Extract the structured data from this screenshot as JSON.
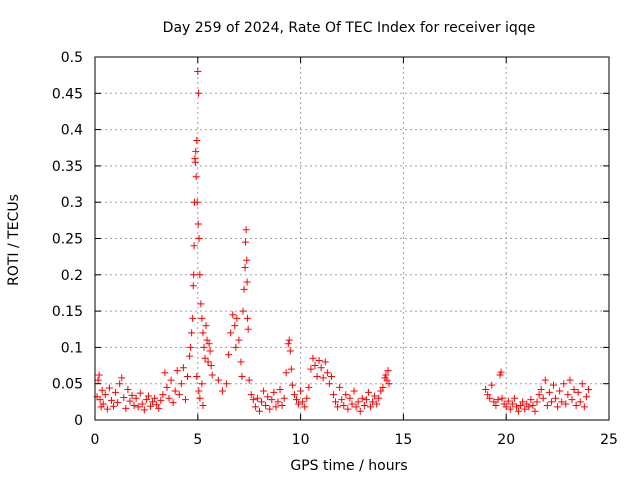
{
  "chart_data": {
    "type": "scatter",
    "title": "Day 259 of 2024, Rate Of TEC Index for receiver iqqe",
    "xlabel": "GPS time / hours",
    "ylabel": "ROTI / TECUs",
    "xlim": [
      0,
      25
    ],
    "ylim": [
      0,
      0.5
    ],
    "xticks": [
      0,
      5,
      10,
      15,
      20,
      25
    ],
    "xtick_labels": [
      "0",
      "5",
      "10",
      "15",
      "20",
      "25"
    ],
    "yticks": [
      0,
      0.05,
      0.1,
      0.15,
      0.2,
      0.25,
      0.3,
      0.35,
      0.4,
      0.45,
      0.5
    ],
    "ytick_labels": [
      "0",
      "0.05",
      "0.1",
      "0.15",
      "0.2",
      "0.25",
      "0.3",
      "0.35",
      "0.4",
      "0.45",
      "0.5"
    ],
    "grid": true,
    "marker": "+",
    "color": "#ff0000",
    "series": [
      {
        "name": "ROTI",
        "points": [
          [
            0.1,
            0.032
          ],
          [
            0.15,
            0.055
          ],
          [
            0.2,
            0.062
          ],
          [
            0.25,
            0.028
          ],
          [
            0.3,
            0.018
          ],
          [
            0.35,
            0.041
          ],
          [
            0.4,
            0.022
          ],
          [
            0.5,
            0.035
          ],
          [
            0.6,
            0.015
          ],
          [
            0.7,
            0.044
          ],
          [
            0.8,
            0.027
          ],
          [
            0.9,
            0.019
          ],
          [
            1.0,
            0.038
          ],
          [
            1.1,
            0.024
          ],
          [
            1.2,
            0.05
          ],
          [
            1.3,
            0.058
          ],
          [
            1.4,
            0.031
          ],
          [
            1.5,
            0.016
          ],
          [
            1.6,
            0.042
          ],
          [
            1.7,
            0.026
          ],
          [
            1.8,
            0.034
          ],
          [
            1.9,
            0.02
          ],
          [
            2.0,
            0.03
          ],
          [
            2.1,
            0.018
          ],
          [
            2.2,
            0.037
          ],
          [
            2.3,
            0.022
          ],
          [
            2.4,
            0.014
          ],
          [
            2.5,
            0.028
          ],
          [
            2.6,
            0.033
          ],
          [
            2.7,
            0.019
          ],
          [
            2.8,
            0.025
          ],
          [
            2.9,
            0.03
          ],
          [
            3.0,
            0.021
          ],
          [
            3.1,
            0.016
          ],
          [
            3.2,
            0.027
          ],
          [
            3.3,
            0.035
          ],
          [
            3.4,
            0.065
          ],
          [
            3.5,
            0.045
          ],
          [
            3.6,
            0.03
          ],
          [
            3.7,
            0.055
          ],
          [
            3.8,
            0.024
          ],
          [
            3.9,
            0.04
          ],
          [
            4.0,
            0.068
          ],
          [
            4.1,
            0.035
          ],
          [
            4.2,
            0.05
          ],
          [
            4.3,
            0.072
          ],
          [
            4.4,
            0.028
          ],
          [
            4.5,
            0.06
          ],
          [
            4.6,
            0.088
          ],
          [
            4.65,
            0.1
          ],
          [
            4.7,
            0.12
          ],
          [
            4.75,
            0.14
          ],
          [
            4.78,
            0.185
          ],
          [
            4.8,
            0.2
          ],
          [
            4.82,
            0.24
          ],
          [
            4.84,
            0.3
          ],
          [
            4.86,
            0.36
          ],
          [
            4.88,
            0.355
          ],
          [
            4.9,
            0.37
          ],
          [
            4.92,
            0.335
          ],
          [
            4.95,
            0.385
          ],
          [
            4.97,
            0.3
          ],
          [
            5.0,
            0.48
          ],
          [
            5.02,
            0.27
          ],
          [
            5.04,
            0.45
          ],
          [
            5.06,
            0.25
          ],
          [
            5.1,
            0.2
          ],
          [
            5.15,
            0.16
          ],
          [
            5.2,
            0.14
          ],
          [
            5.25,
            0.12
          ],
          [
            5.3,
            0.1
          ],
          [
            5.35,
            0.085
          ],
          [
            5.4,
            0.13
          ],
          [
            5.45,
            0.11
          ],
          [
            5.5,
            0.08
          ],
          [
            5.55,
            0.105
          ],
          [
            5.6,
            0.095
          ],
          [
            5.65,
            0.075
          ],
          [
            5.7,
            0.062
          ],
          [
            5.2,
            0.05
          ],
          [
            5.1,
            0.03
          ],
          [
            5.25,
            0.02
          ],
          [
            4.95,
            0.06
          ],
          [
            5.05,
            0.04
          ],
          [
            6.0,
            0.055
          ],
          [
            6.2,
            0.04
          ],
          [
            6.4,
            0.05
          ],
          [
            6.5,
            0.09
          ],
          [
            6.6,
            0.12
          ],
          [
            6.7,
            0.145
          ],
          [
            6.8,
            0.13
          ],
          [
            6.85,
            0.1
          ],
          [
            6.9,
            0.14
          ],
          [
            7.0,
            0.11
          ],
          [
            7.1,
            0.08
          ],
          [
            7.15,
            0.06
          ],
          [
            7.2,
            0.15
          ],
          [
            7.25,
            0.18
          ],
          [
            7.3,
            0.21
          ],
          [
            7.32,
            0.245
          ],
          [
            7.35,
            0.262
          ],
          [
            7.38,
            0.22
          ],
          [
            7.4,
            0.19
          ],
          [
            7.42,
            0.14
          ],
          [
            7.45,
            0.125
          ],
          [
            7.5,
            0.055
          ],
          [
            7.6,
            0.035
          ],
          [
            7.7,
            0.028
          ],
          [
            7.8,
            0.018
          ],
          [
            7.9,
            0.03
          ],
          [
            8.0,
            0.012
          ],
          [
            8.1,
            0.025
          ],
          [
            8.2,
            0.04
          ],
          [
            8.3,
            0.02
          ],
          [
            8.4,
            0.032
          ],
          [
            8.5,
            0.015
          ],
          [
            8.6,
            0.028
          ],
          [
            8.7,
            0.038
          ],
          [
            8.8,
            0.018
          ],
          [
            8.9,
            0.025
          ],
          [
            9.0,
            0.042
          ],
          [
            9.1,
            0.02
          ],
          [
            9.2,
            0.03
          ],
          [
            9.3,
            0.065
          ],
          [
            9.4,
            0.105
          ],
          [
            9.45,
            0.11
          ],
          [
            9.5,
            0.095
          ],
          [
            9.55,
            0.07
          ],
          [
            9.6,
            0.048
          ],
          [
            9.7,
            0.035
          ],
          [
            9.8,
            0.028
          ],
          [
            9.9,
            0.022
          ],
          [
            10.0,
            0.04
          ],
          [
            10.1,
            0.025
          ],
          [
            10.2,
            0.018
          ],
          [
            10.3,
            0.03
          ],
          [
            10.4,
            0.045
          ],
          [
            10.5,
            0.07
          ],
          [
            10.6,
            0.085
          ],
          [
            10.7,
            0.075
          ],
          [
            10.8,
            0.06
          ],
          [
            10.9,
            0.082
          ],
          [
            11.0,
            0.072
          ],
          [
            11.1,
            0.058
          ],
          [
            11.2,
            0.08
          ],
          [
            11.3,
            0.065
          ],
          [
            11.4,
            0.05
          ],
          [
            11.5,
            0.06
          ],
          [
            11.6,
            0.035
          ],
          [
            11.7,
            0.025
          ],
          [
            11.8,
            0.018
          ],
          [
            11.9,
            0.045
          ],
          [
            12.0,
            0.028
          ],
          [
            12.1,
            0.02
          ],
          [
            12.2,
            0.035
          ],
          [
            12.3,
            0.015
          ],
          [
            12.4,
            0.03
          ],
          [
            12.5,
            0.022
          ],
          [
            12.6,
            0.04
          ],
          [
            12.7,
            0.018
          ],
          [
            12.8,
            0.025
          ],
          [
            12.9,
            0.012
          ],
          [
            13.0,
            0.03
          ],
          [
            13.1,
            0.02
          ],
          [
            13.2,
            0.028
          ],
          [
            13.3,
            0.038
          ],
          [
            13.4,
            0.018
          ],
          [
            13.5,
            0.025
          ],
          [
            13.6,
            0.033
          ],
          [
            13.7,
            0.022
          ],
          [
            13.8,
            0.03
          ],
          [
            13.9,
            0.04
          ],
          [
            14.0,
            0.045
          ],
          [
            14.1,
            0.058
          ],
          [
            14.15,
            0.062
          ],
          [
            14.2,
            0.055
          ],
          [
            14.25,
            0.068
          ],
          [
            14.3,
            0.05
          ],
          [
            19.0,
            0.042
          ],
          [
            19.1,
            0.035
          ],
          [
            19.2,
            0.03
          ],
          [
            19.3,
            0.048
          ],
          [
            19.4,
            0.025
          ],
          [
            19.5,
            0.02
          ],
          [
            19.6,
            0.028
          ],
          [
            19.7,
            0.062
          ],
          [
            19.75,
            0.066
          ],
          [
            19.8,
            0.03
          ],
          [
            19.9,
            0.022
          ],
          [
            20.0,
            0.018
          ],
          [
            20.1,
            0.026
          ],
          [
            20.2,
            0.015
          ],
          [
            20.3,
            0.022
          ],
          [
            20.4,
            0.03
          ],
          [
            20.5,
            0.018
          ],
          [
            20.6,
            0.012
          ],
          [
            20.7,
            0.02
          ],
          [
            20.8,
            0.025
          ],
          [
            20.9,
            0.015
          ],
          [
            21.0,
            0.022
          ],
          [
            21.1,
            0.018
          ],
          [
            21.2,
            0.028
          ],
          [
            21.3,
            0.02
          ],
          [
            21.4,
            0.012
          ],
          [
            21.5,
            0.025
          ],
          [
            21.6,
            0.035
          ],
          [
            21.7,
            0.042
          ],
          [
            21.8,
            0.03
          ],
          [
            21.9,
            0.055
          ],
          [
            22.0,
            0.02
          ],
          [
            22.1,
            0.038
          ],
          [
            22.2,
            0.025
          ],
          [
            22.3,
            0.048
          ],
          [
            22.4,
            0.03
          ],
          [
            22.5,
            0.018
          ],
          [
            22.6,
            0.04
          ],
          [
            22.7,
            0.025
          ],
          [
            22.8,
            0.05
          ],
          [
            22.9,
            0.022
          ],
          [
            23.0,
            0.035
          ],
          [
            23.1,
            0.055
          ],
          [
            23.2,
            0.028
          ],
          [
            23.3,
            0.042
          ],
          [
            23.4,
            0.02
          ],
          [
            23.5,
            0.038
          ],
          [
            23.6,
            0.025
          ],
          [
            23.7,
            0.05
          ],
          [
            23.8,
            0.018
          ],
          [
            23.9,
            0.032
          ],
          [
            24.0,
            0.042
          ]
        ]
      }
    ]
  }
}
